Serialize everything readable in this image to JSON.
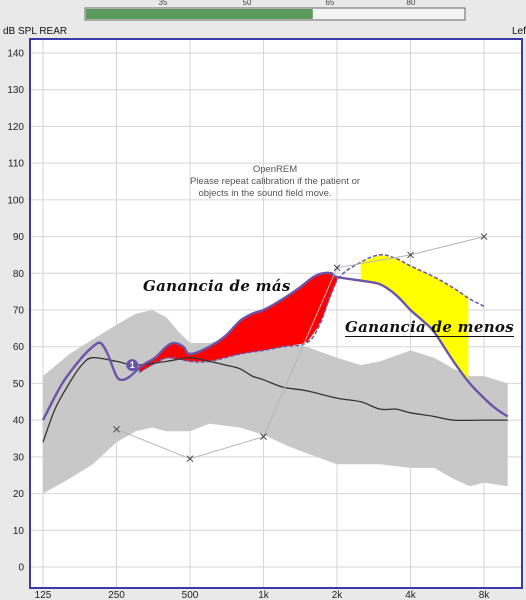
{
  "window": {
    "ylabel": "dB SPL REAR",
    "side_label": "Left",
    "meter": {
      "ticks": [
        "35",
        "50",
        "65",
        "80"
      ],
      "level_fraction": 0.6,
      "color": "#5a9a5a"
    }
  },
  "chart_data": {
    "type": "line",
    "xscale": "log",
    "xlim": [
      115,
      10000
    ],
    "ylim": [
      0,
      145
    ],
    "grid": true,
    "ylabel": "dB SPL REAR",
    "x_ticks": [
      {
        "value": 125,
        "label": "125"
      },
      {
        "value": 250,
        "label": "250"
      },
      {
        "value": 500,
        "label": "500"
      },
      {
        "value": 1000,
        "label": "1k"
      },
      {
        "value": 2000,
        "label": "2k"
      },
      {
        "value": 4000,
        "label": "4k"
      },
      {
        "value": 8000,
        "label": "8k"
      }
    ],
    "y_ticks": [
      0,
      10,
      20,
      30,
      40,
      50,
      60,
      70,
      80,
      90,
      100,
      110,
      120,
      130,
      140
    ],
    "annotation_lines": [
      "OpenREM",
      "Please repeat calibration if the patient or",
      "objects in the sound field move."
    ],
    "labels": {
      "over_gain": "Ganancia de más",
      "under_gain": "Ganancia de menos"
    },
    "marker_label": "1",
    "colors": {
      "band": "#c8c8c8",
      "measured": "#6a55a8",
      "ltass": "#333333",
      "targets": "#9a9a9a",
      "over": "#ff0000",
      "under": "#ffff00",
      "axis": "#3a3aa8",
      "grid": "#d6d6d6",
      "plot_bg": "#ffffff"
    },
    "series": [
      {
        "role": "speech-range-band",
        "upper": [
          [
            125,
            52
          ],
          [
            160,
            58
          ],
          [
            200,
            62
          ],
          [
            250,
            66
          ],
          [
            300,
            69
          ],
          [
            350,
            70
          ],
          [
            400,
            68
          ],
          [
            450,
            64
          ],
          [
            500,
            61
          ],
          [
            600,
            61
          ],
          [
            800,
            63
          ],
          [
            1000,
            63
          ],
          [
            1250,
            61
          ],
          [
            1500,
            60
          ],
          [
            2000,
            57
          ],
          [
            2500,
            55
          ],
          [
            3000,
            56
          ],
          [
            4000,
            59
          ],
          [
            5000,
            57
          ],
          [
            6000,
            54
          ],
          [
            7000,
            52
          ],
          [
            8000,
            52
          ],
          [
            10000,
            50
          ]
        ],
        "lower": [
          [
            125,
            20
          ],
          [
            160,
            24
          ],
          [
            200,
            28
          ],
          [
            250,
            34
          ],
          [
            300,
            37
          ],
          [
            350,
            38
          ],
          [
            400,
            37
          ],
          [
            500,
            37
          ],
          [
            600,
            39
          ],
          [
            800,
            38
          ],
          [
            1000,
            36
          ],
          [
            1250,
            33
          ],
          [
            1500,
            31
          ],
          [
            2000,
            28
          ],
          [
            2500,
            28
          ],
          [
            3000,
            28
          ],
          [
            4000,
            27
          ],
          [
            5000,
            27
          ],
          [
            6000,
            24
          ],
          [
            7000,
            22
          ],
          [
            8000,
            23
          ],
          [
            10000,
            22
          ]
        ]
      },
      {
        "role": "ltass",
        "points": [
          [
            125,
            34
          ],
          [
            140,
            43
          ],
          [
            160,
            50
          ],
          [
            180,
            55
          ],
          [
            200,
            57
          ],
          [
            250,
            56
          ],
          [
            300,
            55
          ],
          [
            400,
            56
          ],
          [
            500,
            57
          ],
          [
            600,
            56
          ],
          [
            700,
            55
          ],
          [
            800,
            54
          ],
          [
            900,
            52
          ],
          [
            1000,
            51
          ],
          [
            1200,
            49
          ],
          [
            1500,
            48
          ],
          [
            2000,
            46
          ],
          [
            2500,
            45
          ],
          [
            3000,
            43
          ],
          [
            3500,
            43
          ],
          [
            4000,
            42
          ],
          [
            5000,
            41
          ],
          [
            6000,
            40
          ],
          [
            8000,
            40
          ],
          [
            10000,
            40
          ]
        ]
      },
      {
        "role": "measured-rear",
        "points": [
          [
            125,
            40
          ],
          [
            150,
            50
          ],
          [
            180,
            57
          ],
          [
            200,
            60
          ],
          [
            215,
            61
          ],
          [
            230,
            58
          ],
          [
            250,
            52
          ],
          [
            265,
            51
          ],
          [
            285,
            52
          ],
          [
            320,
            55
          ],
          [
            360,
            57
          ],
          [
            400,
            60
          ],
          [
            430,
            61
          ],
          [
            470,
            60
          ],
          [
            500,
            58
          ],
          [
            600,
            60
          ],
          [
            700,
            63
          ],
          [
            800,
            67
          ],
          [
            900,
            69
          ],
          [
            1000,
            70
          ],
          [
            1200,
            73
          ],
          [
            1400,
            76
          ],
          [
            1600,
            79
          ],
          [
            1750,
            80
          ],
          [
            1900,
            80
          ],
          [
            2000,
            79
          ],
          [
            2500,
            78
          ],
          [
            3000,
            77
          ],
          [
            3500,
            74
          ],
          [
            4000,
            70
          ],
          [
            4500,
            67
          ],
          [
            5000,
            64
          ],
          [
            6000,
            56
          ],
          [
            7000,
            50
          ],
          [
            8000,
            46
          ],
          [
            9000,
            43
          ],
          [
            10000,
            41
          ]
        ]
      },
      {
        "role": "prescription-target",
        "points": [
          [
            310,
            53
          ],
          [
            400,
            57
          ],
          [
            500,
            56
          ],
          [
            600,
            56
          ],
          [
            800,
            58
          ],
          [
            1000,
            59
          ],
          [
            1200,
            60
          ],
          [
            1500,
            61
          ],
          [
            1700,
            66
          ],
          [
            2000,
            78
          ],
          [
            2500,
            83
          ],
          [
            3000,
            85
          ],
          [
            3500,
            84
          ],
          [
            4000,
            82
          ],
          [
            5000,
            79
          ],
          [
            6000,
            76
          ],
          [
            7000,
            73
          ],
          [
            8000,
            71
          ]
        ]
      },
      {
        "role": "threshold-markers",
        "points": [
          [
            250,
            37.5
          ],
          [
            500,
            29.5
          ],
          [
            1000,
            35.5
          ],
          [
            2000,
            81.5
          ],
          [
            4000,
            85
          ],
          [
            8000,
            90
          ]
        ]
      }
    ],
    "regions": [
      {
        "role": "over_gain",
        "from": 310,
        "to": 2000,
        "upper_series": "measured-rear",
        "lower_series": "prescription-target"
      },
      {
        "role": "under_gain",
        "from": 2500,
        "to": 6900,
        "upper_series": "prescription-target",
        "lower_series": "measured-rear"
      }
    ]
  }
}
